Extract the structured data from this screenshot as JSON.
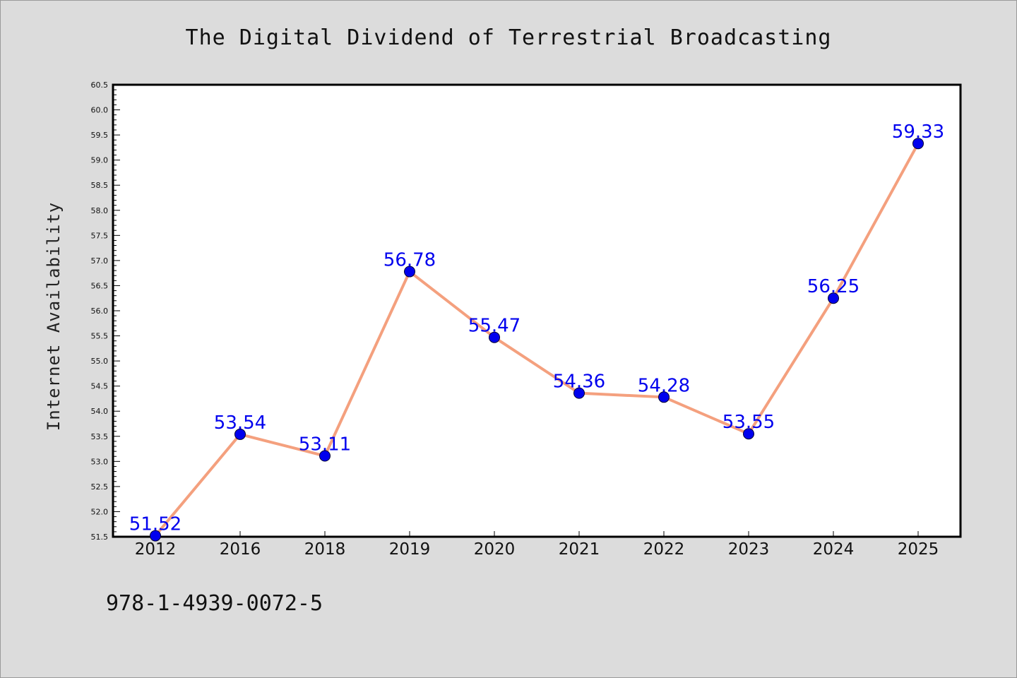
{
  "chart_data": {
    "type": "line",
    "title": "The Digital Dividend of Terrestrial Broadcasting",
    "xlabel": "",
    "ylabel": "Internet Availability",
    "categories": [
      "2012",
      "2016",
      "2018",
      "2019",
      "2020",
      "2021",
      "2022",
      "2023",
      "2024",
      "2025"
    ],
    "series": [
      {
        "values": [
          51.52,
          53.54,
          53.11,
          56.78,
          55.47,
          54.36,
          54.28,
          53.55,
          56.25,
          59.33
        ],
        "labels": [
          "51.52",
          "53.54",
          "53.11",
          "56.78",
          "55.47",
          "54.36",
          "54.28",
          "53.55",
          "56.25",
          "59.33"
        ]
      }
    ],
    "ylim": [
      51.5,
      60.5
    ],
    "yticks": [
      "51.5",
      "52.0",
      "52.5",
      "53.0",
      "53.5",
      "54.0",
      "54.5",
      "55.0",
      "55.5",
      "56.0",
      "56.5",
      "57.0",
      "57.5",
      "58.0",
      "58.5",
      "59.0",
      "59.5",
      "60.0",
      "60.5"
    ],
    "grid": false,
    "legend": "none",
    "colors": {
      "line": "#f4a07e",
      "marker": "#0000ee",
      "data_label": "#0000ee",
      "background": "#dcdcdc",
      "plot_area": "#ffffff"
    }
  },
  "footer": {
    "text": "978-1-4939-0072-5"
  }
}
